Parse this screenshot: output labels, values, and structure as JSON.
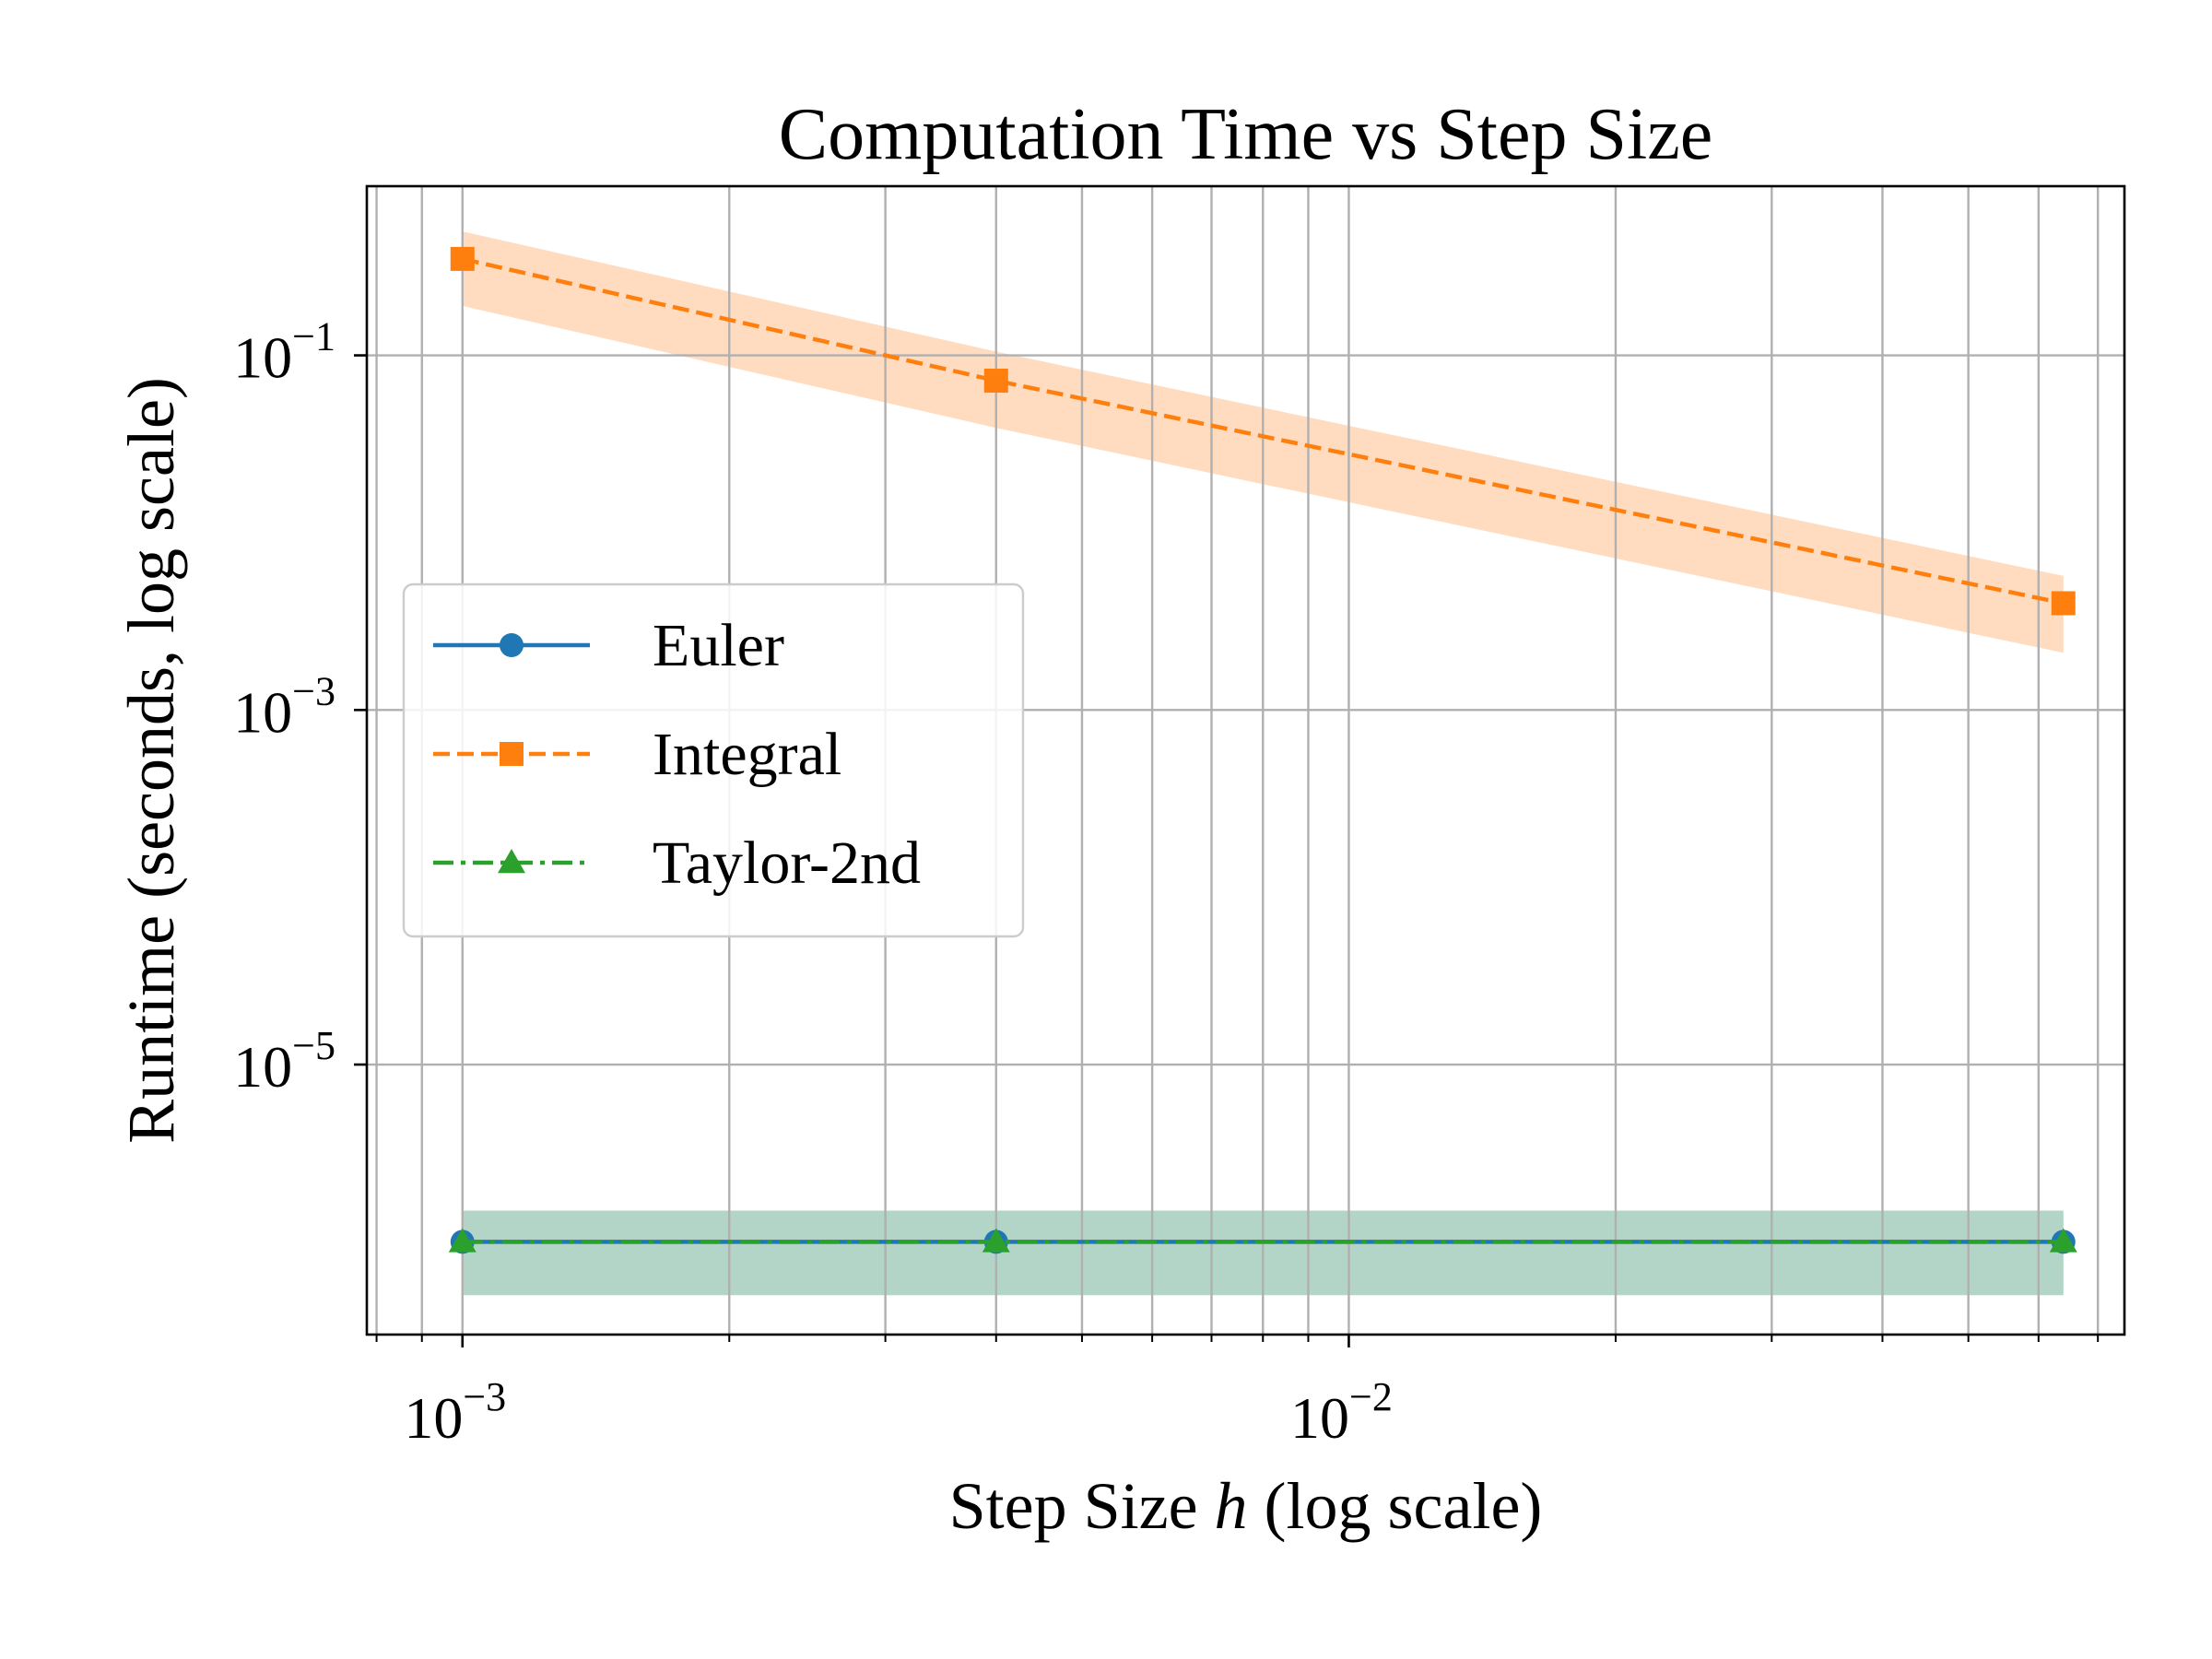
{
  "chart_data": {
    "type": "line",
    "title": "Computation Time vs Step Size",
    "xlabel": {
      "prefix": "Step Size ",
      "italic": "h",
      "suffix": " (log scale)"
    },
    "ylabel": "Runtime (seconds, log scale)",
    "xscale": "log",
    "yscale": "log",
    "xlim": [
      0.00078,
      0.075
    ],
    "ylim": [
      3e-07,
      0.9
    ],
    "xticks": [
      {
        "value": 0.001,
        "base": "10",
        "exp": "−3"
      },
      {
        "value": 0.01,
        "base": "10",
        "exp": "−2"
      }
    ],
    "yticks": [
      {
        "value": 0.1,
        "base": "10",
        "exp": "−1"
      },
      {
        "value": 0.001,
        "base": "10",
        "exp": "−3"
      },
      {
        "value": 1e-05,
        "base": "10",
        "exp": "−5"
      }
    ],
    "grid": true,
    "legend_position": "center-left",
    "x": [
      0.001,
      0.004,
      0.064
    ],
    "series": [
      {
        "name": "Euler",
        "values": [
          1e-06,
          1e-06,
          1e-06
        ],
        "band": [
          [
            5e-07,
            1.5e-06
          ],
          [
            5e-07,
            1.5e-06
          ],
          [
            5e-07,
            1.5e-06
          ]
        ],
        "color": "#1f77b4",
        "marker": "circle",
        "linestyle": "solid"
      },
      {
        "name": "Integral",
        "values": [
          0.35,
          0.072,
          0.004
        ],
        "band": [
          [
            0.19,
            0.5
          ],
          [
            0.039,
            0.105
          ],
          [
            0.0021,
            0.0057
          ]
        ],
        "color": "#ff7f0e",
        "band_color": "#ffdcbf",
        "marker": "square",
        "linestyle": "dashed"
      },
      {
        "name": "Taylor-2nd",
        "values": [
          1e-06,
          1e-06,
          1e-06
        ],
        "band": [
          [
            5e-07,
            1.5e-06
          ],
          [
            5e-07,
            1.5e-06
          ],
          [
            5e-07,
            1.5e-06
          ]
        ],
        "color": "#2ca02c",
        "band_color": "#b3d5c8",
        "marker": "triangle",
        "linestyle": "dashdot"
      }
    ]
  }
}
